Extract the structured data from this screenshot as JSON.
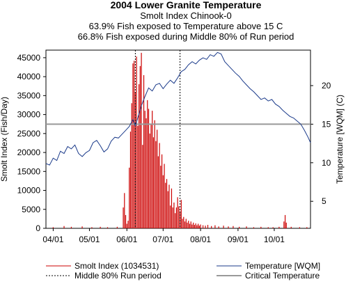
{
  "chart_data": {
    "type": "bar",
    "title": "2004 Lower Granite Temperature",
    "subtitles": [
      "Smolt Index Chinook-0",
      "63.9% Fish exposed to Temperature above 15 C",
      "66.8% Fish exposed during Middle 80% of Run period"
    ],
    "ylabel": "Smolt Index (Fish/Day)",
    "y2label": "Temperature [WQM] (C)",
    "xlim": [
      "2004-03-26",
      "2004-10-31"
    ],
    "ylim": [
      0,
      47000
    ],
    "y2lim": [
      1.5,
      24.6
    ],
    "x_ticks": [
      {
        "date": "2004-04-01",
        "label": "04/01"
      },
      {
        "date": "2004-05-01",
        "label": "05/01"
      },
      {
        "date": "2004-06-01",
        "label": "06/01"
      },
      {
        "date": "2004-07-01",
        "label": "07/01"
      },
      {
        "date": "2004-08-01",
        "label": "08/01"
      },
      {
        "date": "2004-09-01",
        "label": "09/01"
      },
      {
        "date": "2004-10-01",
        "label": "10/01"
      }
    ],
    "y_ticks": [
      0,
      5000,
      10000,
      15000,
      20000,
      25000,
      30000,
      35000,
      40000,
      45000
    ],
    "y2_ticks": [
      5,
      10,
      15,
      20
    ],
    "critical_temperature": 15,
    "run_period": {
      "start": "2004-06-08",
      "end": "2004-07-15"
    },
    "series": [
      {
        "name": "Smolt Index (1034531)",
        "color": "#cc0000",
        "type": "bar",
        "points": [
          {
            "x": "2004-04-01",
            "y": 300
          },
          {
            "x": "2004-04-10",
            "y": 600
          },
          {
            "x": "2004-04-16",
            "y": 400
          },
          {
            "x": "2004-04-25",
            "y": 500
          },
          {
            "x": "2004-05-03",
            "y": 300
          },
          {
            "x": "2004-05-10",
            "y": 400
          },
          {
            "x": "2004-05-16",
            "y": 300
          },
          {
            "x": "2004-05-24",
            "y": 400
          },
          {
            "x": "2004-05-29",
            "y": 5500
          },
          {
            "x": "2004-05-30",
            "y": 9300
          },
          {
            "x": "2004-05-31",
            "y": 3500
          },
          {
            "x": "2004-06-01",
            "y": 1200
          },
          {
            "x": "2004-06-02",
            "y": 2000
          },
          {
            "x": "2004-06-03",
            "y": 16000
          },
          {
            "x": "2004-06-04",
            "y": 25500
          },
          {
            "x": "2004-06-05",
            "y": 33000
          },
          {
            "x": "2004-06-06",
            "y": 43500
          },
          {
            "x": "2004-06-07",
            "y": 44200
          },
          {
            "x": "2004-06-08",
            "y": 36000
          },
          {
            "x": "2004-06-09",
            "y": 45300
          },
          {
            "x": "2004-06-10",
            "y": 27000
          },
          {
            "x": "2004-06-11",
            "y": 38000
          },
          {
            "x": "2004-06-12",
            "y": 42800
          },
          {
            "x": "2004-06-13",
            "y": 46300
          },
          {
            "x": "2004-06-14",
            "y": 22000
          },
          {
            "x": "2004-06-15",
            "y": 40400
          },
          {
            "x": "2004-06-16",
            "y": 31000
          },
          {
            "x": "2004-06-17",
            "y": 29000
          },
          {
            "x": "2004-06-18",
            "y": 33800
          },
          {
            "x": "2004-06-19",
            "y": 31500
          },
          {
            "x": "2004-06-20",
            "y": 25000
          },
          {
            "x": "2004-06-21",
            "y": 27500
          },
          {
            "x": "2004-06-22",
            "y": 31000
          },
          {
            "x": "2004-06-23",
            "y": 24000
          },
          {
            "x": "2004-06-24",
            "y": 28500
          },
          {
            "x": "2004-06-25",
            "y": 23000
          },
          {
            "x": "2004-06-26",
            "y": 26000
          },
          {
            "x": "2004-06-27",
            "y": 19000
          },
          {
            "x": "2004-06-28",
            "y": 22500
          },
          {
            "x": "2004-06-29",
            "y": 16500
          },
          {
            "x": "2004-06-30",
            "y": 19500
          },
          {
            "x": "2004-07-01",
            "y": 14000
          },
          {
            "x": "2004-07-02",
            "y": 17000
          },
          {
            "x": "2004-07-03",
            "y": 12000
          },
          {
            "x": "2004-07-04",
            "y": 13000
          },
          {
            "x": "2004-07-05",
            "y": 9800
          },
          {
            "x": "2004-07-06",
            "y": 11500
          },
          {
            "x": "2004-07-07",
            "y": 6000
          },
          {
            "x": "2004-07-08",
            "y": 10500
          },
          {
            "x": "2004-07-09",
            "y": 5500
          },
          {
            "x": "2004-07-10",
            "y": 6800
          },
          {
            "x": "2004-07-11",
            "y": 4000
          },
          {
            "x": "2004-07-12",
            "y": 5500
          },
          {
            "x": "2004-07-13",
            "y": 8200
          },
          {
            "x": "2004-07-14",
            "y": 5800
          },
          {
            "x": "2004-07-15",
            "y": 4500
          },
          {
            "x": "2004-07-16",
            "y": 7500
          },
          {
            "x": "2004-07-17",
            "y": 2500
          },
          {
            "x": "2004-07-18",
            "y": 3000
          },
          {
            "x": "2004-07-19",
            "y": 1800
          },
          {
            "x": "2004-07-20",
            "y": 2500
          },
          {
            "x": "2004-07-21",
            "y": 1500
          },
          {
            "x": "2004-07-22",
            "y": 2000
          },
          {
            "x": "2004-07-23",
            "y": 1200
          },
          {
            "x": "2004-07-24",
            "y": 1800
          },
          {
            "x": "2004-07-25",
            "y": 1000
          },
          {
            "x": "2004-07-26",
            "y": 1500
          },
          {
            "x": "2004-07-27",
            "y": 900
          },
          {
            "x": "2004-07-28",
            "y": 1300
          },
          {
            "x": "2004-07-29",
            "y": 800
          },
          {
            "x": "2004-07-30",
            "y": 1200
          },
          {
            "x": "2004-07-31",
            "y": 700
          },
          {
            "x": "2004-08-01",
            "y": 1000
          },
          {
            "x": "2004-08-03",
            "y": 800
          },
          {
            "x": "2004-08-05",
            "y": 700
          },
          {
            "x": "2004-08-07",
            "y": 900
          },
          {
            "x": "2004-08-10",
            "y": 600
          },
          {
            "x": "2004-08-13",
            "y": 800
          },
          {
            "x": "2004-08-16",
            "y": 500
          },
          {
            "x": "2004-08-20",
            "y": 700
          },
          {
            "x": "2004-08-24",
            "y": 500
          },
          {
            "x": "2004-08-28",
            "y": 600
          },
          {
            "x": "2004-09-02",
            "y": 400
          },
          {
            "x": "2004-09-08",
            "y": 500
          },
          {
            "x": "2004-09-14",
            "y": 300
          },
          {
            "x": "2004-09-20",
            "y": 400
          },
          {
            "x": "2004-09-26",
            "y": 300
          },
          {
            "x": "2004-09-30",
            "y": 300
          },
          {
            "x": "2004-10-05",
            "y": 400
          },
          {
            "x": "2004-10-09",
            "y": 1800
          },
          {
            "x": "2004-10-10",
            "y": 3500
          },
          {
            "x": "2004-10-11",
            "y": 1500
          },
          {
            "x": "2004-10-15",
            "y": 400
          },
          {
            "x": "2004-10-22",
            "y": 300
          },
          {
            "x": "2004-10-28",
            "y": 300
          }
        ]
      },
      {
        "name": "Temperature [WQM]",
        "color": "#1a3a8a",
        "type": "line",
        "points": [
          {
            "x": "2004-03-26",
            "y": 9.9
          },
          {
            "x": "2004-03-29",
            "y": 9.7
          },
          {
            "x": "2004-04-01",
            "y": 10.6
          },
          {
            "x": "2004-04-04",
            "y": 10.3
          },
          {
            "x": "2004-04-07",
            "y": 11.5
          },
          {
            "x": "2004-04-10",
            "y": 11.2
          },
          {
            "x": "2004-04-13",
            "y": 12.1
          },
          {
            "x": "2004-04-16",
            "y": 11.8
          },
          {
            "x": "2004-04-19",
            "y": 12.3
          },
          {
            "x": "2004-04-22",
            "y": 11.2
          },
          {
            "x": "2004-04-25",
            "y": 10.8
          },
          {
            "x": "2004-04-28",
            "y": 11.3
          },
          {
            "x": "2004-05-01",
            "y": 11.6
          },
          {
            "x": "2004-05-04",
            "y": 12.6
          },
          {
            "x": "2004-05-07",
            "y": 12.9
          },
          {
            "x": "2004-05-10",
            "y": 12.2
          },
          {
            "x": "2004-05-13",
            "y": 11.4
          },
          {
            "x": "2004-05-16",
            "y": 11.8
          },
          {
            "x": "2004-05-19",
            "y": 12.8
          },
          {
            "x": "2004-05-22",
            "y": 13.3
          },
          {
            "x": "2004-05-25",
            "y": 13.2
          },
          {
            "x": "2004-05-28",
            "y": 13.7
          },
          {
            "x": "2004-05-31",
            "y": 14.2
          },
          {
            "x": "2004-06-03",
            "y": 14.7
          },
          {
            "x": "2004-06-06",
            "y": 15.6
          },
          {
            "x": "2004-06-08",
            "y": 14.8
          },
          {
            "x": "2004-06-10",
            "y": 15.8
          },
          {
            "x": "2004-06-13",
            "y": 17.4
          },
          {
            "x": "2004-06-16",
            "y": 18.6
          },
          {
            "x": "2004-06-19",
            "y": 19.7
          },
          {
            "x": "2004-06-22",
            "y": 19.3
          },
          {
            "x": "2004-06-25",
            "y": 20.1
          },
          {
            "x": "2004-06-28",
            "y": 20.3
          },
          {
            "x": "2004-07-01",
            "y": 19.6
          },
          {
            "x": "2004-07-04",
            "y": 20.2
          },
          {
            "x": "2004-07-07",
            "y": 20.7
          },
          {
            "x": "2004-07-10",
            "y": 20.3
          },
          {
            "x": "2004-07-13",
            "y": 21.0
          },
          {
            "x": "2004-07-16",
            "y": 21.8
          },
          {
            "x": "2004-07-19",
            "y": 22.1
          },
          {
            "x": "2004-07-22",
            "y": 22.7
          },
          {
            "x": "2004-07-25",
            "y": 23.1
          },
          {
            "x": "2004-07-28",
            "y": 22.8
          },
          {
            "x": "2004-07-31",
            "y": 23.3
          },
          {
            "x": "2004-08-03",
            "y": 23.6
          },
          {
            "x": "2004-08-06",
            "y": 23.4
          },
          {
            "x": "2004-08-09",
            "y": 24.0
          },
          {
            "x": "2004-08-12",
            "y": 23.8
          },
          {
            "x": "2004-08-15",
            "y": 24.3
          },
          {
            "x": "2004-08-18",
            "y": 24.1
          },
          {
            "x": "2004-08-21",
            "y": 23.1
          },
          {
            "x": "2004-08-24",
            "y": 22.6
          },
          {
            "x": "2004-08-27",
            "y": 22.1
          },
          {
            "x": "2004-08-30",
            "y": 21.6
          },
          {
            "x": "2004-09-02",
            "y": 21.2
          },
          {
            "x": "2004-09-05",
            "y": 20.6
          },
          {
            "x": "2004-09-08",
            "y": 20.1
          },
          {
            "x": "2004-09-11",
            "y": 19.6
          },
          {
            "x": "2004-09-14",
            "y": 19.2
          },
          {
            "x": "2004-09-17",
            "y": 18.7
          },
          {
            "x": "2004-09-20",
            "y": 18.2
          },
          {
            "x": "2004-09-23",
            "y": 18.4
          },
          {
            "x": "2004-09-26",
            "y": 18.0
          },
          {
            "x": "2004-09-29",
            "y": 18.2
          },
          {
            "x": "2004-10-02",
            "y": 17.6
          },
          {
            "x": "2004-10-05",
            "y": 17.3
          },
          {
            "x": "2004-10-08",
            "y": 16.8
          },
          {
            "x": "2004-10-11",
            "y": 16.4
          },
          {
            "x": "2004-10-14",
            "y": 16.0
          },
          {
            "x": "2004-10-17",
            "y": 15.8
          },
          {
            "x": "2004-10-20",
            "y": 15.4
          },
          {
            "x": "2004-10-23",
            "y": 15.0
          },
          {
            "x": "2004-10-26",
            "y": 14.2
          },
          {
            "x": "2004-10-29",
            "y": 13.3
          },
          {
            "x": "2004-10-31",
            "y": 12.6
          }
        ]
      }
    ],
    "legend": [
      {
        "label": "Smolt Index (1034531)",
        "style": "solid",
        "color": "#cc0000"
      },
      {
        "label": "Temperature [WQM]",
        "style": "solid",
        "color": "#1a3a8a"
      },
      {
        "label": "Middle 80% Run period",
        "style": "dotted",
        "color": "#000000"
      },
      {
        "label": "Critical Temperature",
        "style": "solid",
        "color": "#999999"
      }
    ]
  }
}
